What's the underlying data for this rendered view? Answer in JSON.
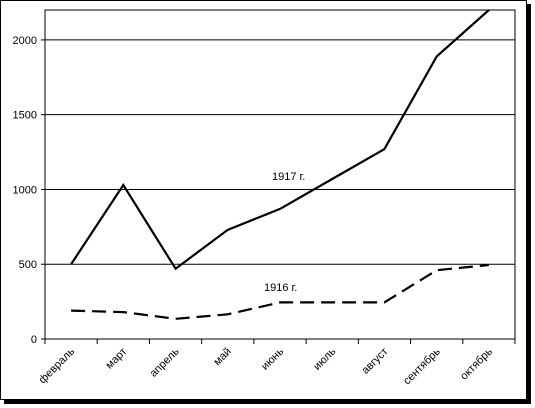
{
  "chart_data": {
    "type": "line",
    "categories": [
      "февраль",
      "март",
      "апрель",
      "май",
      "июнь",
      "июль",
      "август",
      "сентябрь",
      "октябрь"
    ],
    "series": [
      {
        "name": "1917 г.",
        "values": [
          500,
          1030,
          470,
          730,
          870,
          1070,
          1270,
          1890,
          2200
        ],
        "style": "solid"
      },
      {
        "name": "1916 г.",
        "values": [
          190,
          180,
          135,
          165,
          245,
          245,
          245,
          460,
          495
        ],
        "style": "dashed"
      }
    ],
    "yticks": [
      "0",
      "500",
      "1000",
      "1500",
      "2000"
    ],
    "ylim": [
      0,
      2200
    ],
    "grid": true,
    "title": "",
    "xlabel": "",
    "ylabel": "",
    "colors": {
      "line": "#000000",
      "grid": "#000000"
    }
  }
}
